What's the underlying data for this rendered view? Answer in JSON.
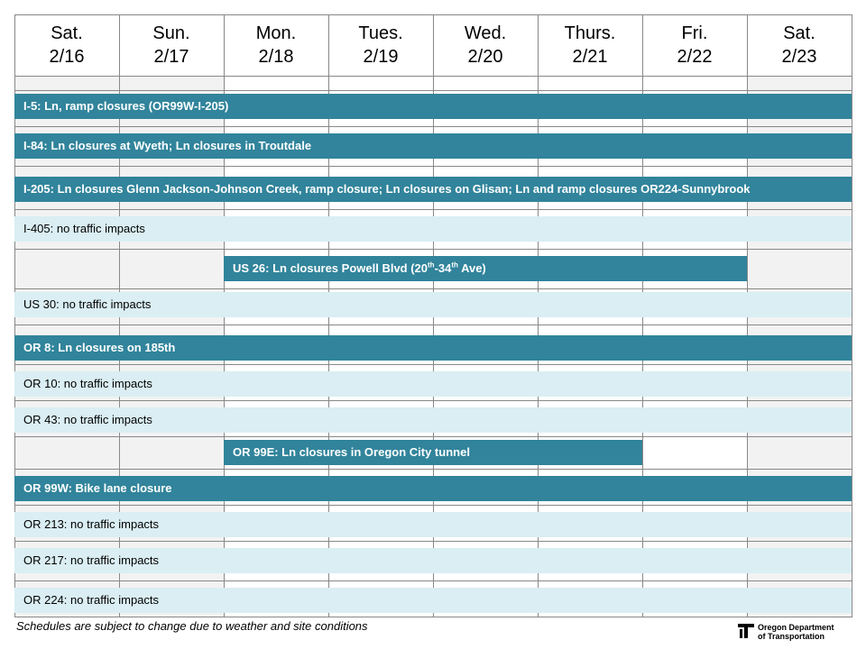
{
  "header": {
    "days": [
      {
        "day": "Sat.",
        "date": "2/16",
        "weekend": true
      },
      {
        "day": "Sun.",
        "date": "2/17",
        "weekend": true
      },
      {
        "day": "Mon.",
        "date": "2/18",
        "weekend": false
      },
      {
        "day": "Tues.",
        "date": "2/19",
        "weekend": false
      },
      {
        "day": "Wed.",
        "date": "2/20",
        "weekend": false
      },
      {
        "day": "Thurs.",
        "date": "2/21",
        "weekend": false
      },
      {
        "day": "Fri.",
        "date": "2/22",
        "weekend": false
      },
      {
        "day": "Sat.",
        "date": "2/23",
        "weekend": true
      }
    ]
  },
  "rows": [
    {
      "label": "I-5: Ln, ramp closures (OR99W-I-205)",
      "closure": true
    },
    {
      "label": "I-84: Ln closures at Wyeth; Ln closures in Troutdale",
      "closure": true
    },
    {
      "label": "I-205:  Ln closures Glenn Jackson-Johnson Creek, ramp closure; Ln closures on Glisan; Ln and ramp closures OR224-Sunnybrook",
      "closure": true
    },
    {
      "label": "I-405: no traffic impacts",
      "closure": false
    },
    {
      "segments": [
        {
          "text": "US 26: Ln closures Powell Blvd (20"
        },
        {
          "text": "th",
          "sup": true
        },
        {
          "text": "-34"
        },
        {
          "text": "th",
          "sup": true
        },
        {
          "text": " Ave)"
        }
      ],
      "closure": true,
      "span": [
        2,
        6
      ]
    },
    {
      "label": "US 30: no traffic impacts",
      "closure": false
    },
    {
      "label": "OR 8:  Ln closures on 185th",
      "closure": true
    },
    {
      "label": "OR 10: no traffic impacts",
      "closure": false
    },
    {
      "label": "OR 43: no traffic impacts",
      "closure": false
    },
    {
      "label": "OR 99E:  Ln closures in Oregon City tunnel",
      "closure": true,
      "span": [
        2,
        5
      ]
    },
    {
      "label": "OR 99W: Bike lane closure",
      "closure": true
    },
    {
      "label": "OR 213: no traffic impacts",
      "closure": false
    },
    {
      "label": "OR 217: no traffic impacts",
      "closure": false
    },
    {
      "label": "OR 224: no traffic impacts",
      "closure": false
    }
  ],
  "footer": {
    "note": "Schedules are subject to change due to weather and site conditions",
    "logo_line1": "Oregon Department",
    "logo_line2": "of Transportation"
  }
}
